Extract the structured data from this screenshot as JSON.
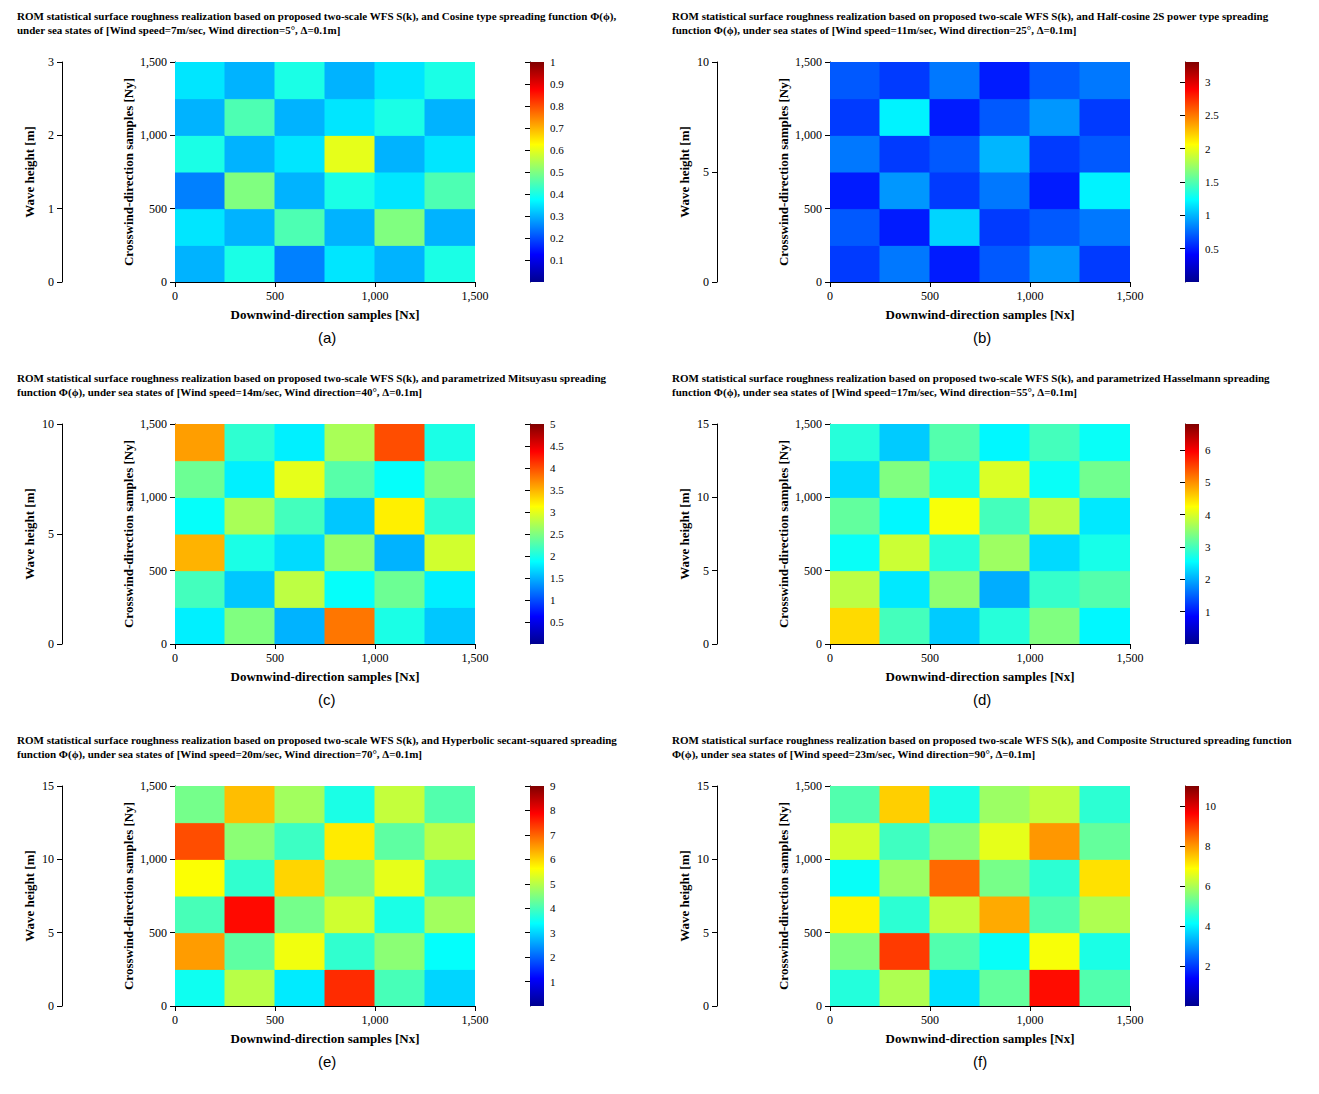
{
  "chart_data": [
    {
      "type": "heatmap",
      "panel": "(a)",
      "title": "ROM statistical surface roughness realization based on proposed two-scale WFS S(k), and Cosine type spreading function Φ(ϕ), under sea states of [Wind speed=7m/sec, Wind direction=5°, Δ=0.1m]",
      "xlabel": "Downwind-direction samples [Nx]",
      "ylabel": "Crosswind-direction samples [Ny]",
      "zlabel": "Wave height [m]",
      "xlim": [
        0,
        1500
      ],
      "xticks": [
        0,
        500,
        1000,
        1500
      ],
      "ylim": [
        0,
        1500
      ],
      "yticks": [
        0,
        500,
        1000,
        1500
      ],
      "zlim": [
        0,
        3
      ],
      "zticks": [
        0,
        1,
        2,
        3
      ],
      "colorbar": {
        "lim": [
          0,
          1
        ],
        "ticks": [
          0.1,
          0.2,
          0.3,
          0.4,
          0.5,
          0.6,
          0.7,
          0.8,
          0.9,
          1
        ]
      },
      "x": [
        125,
        375,
        625,
        875,
        1125,
        1375
      ],
      "y": [
        125,
        375,
        625,
        875,
        1125,
        1375
      ],
      "values": [
        [
          0.3,
          0.4,
          0.25,
          0.35,
          0.3,
          0.4
        ],
        [
          0.35,
          0.3,
          0.45,
          0.3,
          0.5,
          0.3
        ],
        [
          0.25,
          0.5,
          0.3,
          0.4,
          0.35,
          0.45
        ],
        [
          0.4,
          0.3,
          0.35,
          0.6,
          0.3,
          0.35
        ],
        [
          0.3,
          0.45,
          0.3,
          0.35,
          0.4,
          0.3
        ],
        [
          0.35,
          0.3,
          0.4,
          0.3,
          0.35,
          0.4
        ]
      ]
    },
    {
      "type": "heatmap",
      "panel": "(b)",
      "title": "ROM statistical surface roughness realization based on proposed two-scale WFS S(k), and Half-cosine 2S power type spreading function Φ(ϕ), under sea states of [Wind speed=11m/sec, Wind direction=25°, Δ=0.1m]",
      "xlabel": "Downwind-direction samples [Nx]",
      "ylabel": "Crosswind-direction samples [Ny]",
      "zlabel": "Wave height [m]",
      "xlim": [
        0,
        1500
      ],
      "xticks": [
        0,
        500,
        1000,
        1500
      ],
      "ylim": [
        0,
        1500
      ],
      "yticks": [
        0,
        500,
        1000,
        1500
      ],
      "zlim": [
        0,
        10
      ],
      "zticks": [
        0,
        5,
        10
      ],
      "colorbar": {
        "lim": [
          0,
          3.3
        ],
        "ticks": [
          0.5,
          1,
          1.5,
          2,
          2.5,
          3
        ]
      },
      "x": [
        125,
        375,
        625,
        875,
        1125,
        1375
      ],
      "y": [
        125,
        375,
        625,
        875,
        1125,
        1375
      ],
      "values": [
        [
          0.6,
          0.8,
          0.5,
          0.7,
          0.9,
          0.6
        ],
        [
          0.7,
          0.5,
          1.1,
          0.6,
          0.7,
          0.8
        ],
        [
          0.5,
          0.9,
          0.6,
          0.8,
          0.5,
          1.2
        ],
        [
          0.8,
          0.6,
          0.7,
          1.0,
          0.6,
          0.7
        ],
        [
          0.6,
          1.2,
          0.5,
          0.7,
          0.9,
          0.6
        ],
        [
          0.7,
          0.6,
          0.8,
          0.5,
          0.7,
          0.8
        ]
      ]
    },
    {
      "type": "heatmap",
      "panel": "(c)",
      "title": "ROM statistical surface roughness realization based on proposed two-scale WFS S(k), and parametrized Mitsuyasu spreading function Φ(ϕ), under sea states of [Wind speed=14m/sec, Wind direction=40°, Δ=0.1m]",
      "xlabel": "Downwind-direction samples [Nx]",
      "ylabel": "Crosswind-direction samples [Ny]",
      "zlabel": "Wave height [m]",
      "xlim": [
        0,
        1500
      ],
      "xticks": [
        0,
        500,
        1000,
        1500
      ],
      "ylim": [
        0,
        1500
      ],
      "yticks": [
        0,
        500,
        1000,
        1500
      ],
      "zlim": [
        0,
        10
      ],
      "zticks": [
        0,
        5,
        10
      ],
      "colorbar": {
        "lim": [
          0,
          5
        ],
        "ticks": [
          0.5,
          1,
          1.5,
          2,
          2.5,
          3,
          3.5,
          4,
          4.5,
          5
        ]
      },
      "x": [
        125,
        375,
        625,
        875,
        1125,
        1375
      ],
      "y": [
        125,
        375,
        625,
        875,
        1125,
        1375
      ],
      "values": [
        [
          1.8,
          2.5,
          1.5,
          3.8,
          2.0,
          1.6
        ],
        [
          2.2,
          1.6,
          2.8,
          1.9,
          2.4,
          1.8
        ],
        [
          3.5,
          2.0,
          1.7,
          2.6,
          1.5,
          2.9
        ],
        [
          1.9,
          2.7,
          2.2,
          1.6,
          3.2,
          2.1
        ],
        [
          2.4,
          1.8,
          3.0,
          2.3,
          1.9,
          2.5
        ],
        [
          3.6,
          2.1,
          1.8,
          2.7,
          4.0,
          2.0
        ]
      ]
    },
    {
      "type": "heatmap",
      "panel": "(d)",
      "title": "ROM statistical surface roughness realization based on proposed two-scale WFS S(k), and parametrized Hasselmann spreading function Φ(ϕ), under sea states of [Wind speed=17m/sec, Wind direction=55°, Δ=0.1m]",
      "xlabel": "Downwind-direction samples [Nx]",
      "ylabel": "Crosswind-direction samples [Ny]",
      "zlabel": "Wave height [m]",
      "xlim": [
        0,
        1500
      ],
      "xticks": [
        0,
        500,
        1000,
        1500
      ],
      "ylim": [
        0,
        1500
      ],
      "yticks": [
        0,
        500,
        1000,
        1500
      ],
      "zlim": [
        0,
        15
      ],
      "zticks": [
        0,
        5,
        10,
        15
      ],
      "colorbar": {
        "lim": [
          0,
          6.8
        ],
        "ticks": [
          1,
          2,
          3,
          4,
          5,
          6
        ]
      },
      "x": [
        125,
        375,
        625,
        875,
        1125,
        1375
      ],
      "y": [
        125,
        375,
        625,
        875,
        1125,
        1375
      ],
      "values": [
        [
          4.5,
          3.0,
          2.2,
          2.8,
          3.4,
          2.5
        ],
        [
          3.8,
          2.4,
          3.5,
          2.0,
          2.9,
          3.1
        ],
        [
          2.6,
          3.9,
          2.8,
          3.6,
          2.3,
          2.7
        ],
        [
          3.2,
          2.5,
          4.2,
          3.0,
          3.8,
          2.4
        ],
        [
          2.3,
          3.4,
          2.7,
          4.0,
          2.6,
          3.3
        ],
        [
          2.8,
          2.2,
          3.1,
          2.5,
          3.0,
          2.6
        ]
      ]
    },
    {
      "type": "heatmap",
      "panel": "(e)",
      "title": "ROM statistical surface roughness realization based on proposed two-scale WFS S(k), and Hyperbolic secant-squared spreading function Φ(ϕ), under sea states of [Wind speed=20m/sec, Wind direction=70°, Δ=0.1m]",
      "xlabel": "Downwind-direction samples [Nx]",
      "ylabel": "Crosswind-direction samples [Ny]",
      "zlabel": "Wave height [m]",
      "xlim": [
        0,
        1500
      ],
      "xticks": [
        0,
        500,
        1000,
        1500
      ],
      "ylim": [
        0,
        1500
      ],
      "yticks": [
        0,
        500,
        1000,
        1500
      ],
      "zlim": [
        0,
        15
      ],
      "zticks": [
        0,
        5,
        10,
        15
      ],
      "colorbar": {
        "lim": [
          0,
          9
        ],
        "ticks": [
          1,
          2,
          3,
          4,
          5,
          6,
          7,
          8,
          9
        ]
      },
      "x": [
        125,
        375,
        625,
        875,
        1125,
        1375
      ],
      "y": [
        125,
        375,
        625,
        875,
        1125,
        1375
      ],
      "values": [
        [
          3.5,
          5.0,
          3.2,
          7.5,
          4.0,
          3.0
        ],
        [
          6.5,
          4.2,
          5.5,
          3.8,
          4.6,
          3.4
        ],
        [
          4.0,
          7.8,
          4.4,
          5.2,
          3.6,
          4.8
        ],
        [
          5.6,
          3.8,
          6.0,
          4.5,
          5.4,
          3.9
        ],
        [
          7.2,
          4.6,
          3.9,
          5.8,
          4.2,
          5.0
        ],
        [
          4.4,
          6.2,
          4.8,
          3.6,
          5.1,
          4.1
        ]
      ]
    },
    {
      "type": "heatmap",
      "panel": "(f)",
      "title": "ROM statistical surface roughness realization based on proposed two-scale WFS S(k), and Composite Structured spreading function Φ(ϕ), under sea states of [Wind speed=23m/sec, Wind direction=90°, Δ=0.1m]",
      "xlabel": "Downwind-direction samples [Nx]",
      "ylabel": "Crosswind-direction samples [Ny]",
      "zlabel": "Wave height [m]",
      "xlim": [
        0,
        1500
      ],
      "xticks": [
        0,
        500,
        1000,
        1500
      ],
      "ylim": [
        0,
        1500
      ],
      "yticks": [
        0,
        500,
        1000,
        1500
      ],
      "zlim": [
        0,
        15
      ],
      "zticks": [
        0,
        5,
        10,
        15
      ],
      "colorbar": {
        "lim": [
          0,
          11
        ],
        "ticks": [
          2,
          4,
          6,
          8,
          10
        ]
      },
      "x": [
        125,
        375,
        625,
        875,
        1125,
        1375
      ],
      "y": [
        125,
        375,
        625,
        875,
        1125,
        1375
      ],
      "values": [
        [
          4.5,
          6.0,
          3.8,
          5.2,
          9.5,
          5.0
        ],
        [
          5.5,
          9.0,
          5.0,
          4.2,
          6.8,
          4.4
        ],
        [
          7.0,
          4.6,
          6.2,
          7.8,
          5.0,
          6.0
        ],
        [
          4.2,
          5.8,
          8.5,
          5.4,
          4.6,
          7.2
        ],
        [
          6.4,
          4.8,
          5.6,
          6.6,
          8.0,
          5.2
        ],
        [
          5.0,
          7.4,
          4.4,
          5.8,
          6.2,
          4.6
        ]
      ]
    }
  ]
}
